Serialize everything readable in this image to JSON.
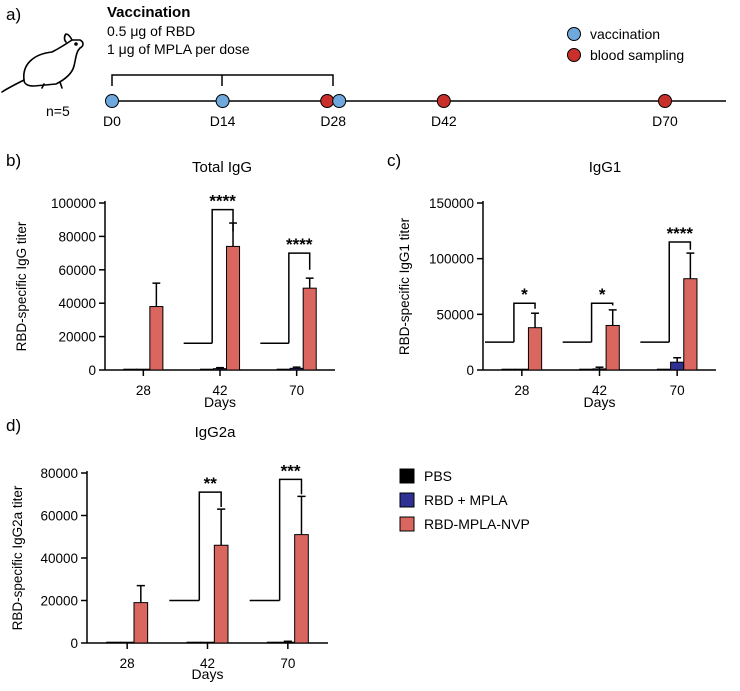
{
  "colors": {
    "pbs": "#000000",
    "rbd_mpla": "#2e3192",
    "nvp": "#d9675f",
    "vaccination": "#6fa8dc",
    "blood_sampling": "#c9302c"
  },
  "schedule": {
    "panel_label": "a)",
    "heading": "Vaccination",
    "line1": "0.5 μg of RBD",
    "line2": "1 μg of MPLA per dose",
    "n_label": "n=5",
    "legend_vaccination": "vaccination",
    "legend_blood": "blood sampling",
    "days": [
      {
        "label": "D0",
        "day": 0
      },
      {
        "label": "D14",
        "day": 14
      },
      {
        "label": "D28",
        "day": 28
      },
      {
        "label": "D42",
        "day": 42
      },
      {
        "label": "D70",
        "day": 70
      }
    ],
    "vaccination_days": [
      0,
      14,
      28
    ],
    "sampling_days": [
      28,
      42,
      70
    ]
  },
  "legend": {
    "items": [
      {
        "key": "pbs",
        "label": "PBS"
      },
      {
        "key": "rbd_mpla",
        "label": "RBD + MPLA"
      },
      {
        "key": "nvp",
        "label": "RBD-MPLA-NVP"
      }
    ]
  },
  "chart_data": [
    {
      "panel": "b)",
      "type": "bar",
      "title": "Total IgG",
      "xlabel": "Days",
      "ylabel": "RBD-specific IgG titer",
      "categories": [
        "28",
        "42",
        "70"
      ],
      "ylim": [
        0,
        100000
      ],
      "yticks": [
        0,
        20000,
        40000,
        60000,
        80000,
        100000
      ],
      "yticklabels": [
        "0",
        "20000",
        "40000",
        "60000",
        "80000",
        "100000"
      ],
      "series": [
        {
          "name": "PBS",
          "key": "pbs",
          "values": [
            0,
            0,
            0
          ],
          "errors": [
            0,
            0,
            0
          ]
        },
        {
          "name": "RBD + MPLA",
          "key": "rbd_mpla",
          "values": [
            0,
            800,
            1000
          ],
          "errors": [
            0,
            600,
            700
          ]
        },
        {
          "name": "RBD-MPLA-NVP",
          "key": "nvp",
          "values": [
            38000,
            74000,
            49000
          ],
          "errors": [
            14000,
            14000,
            6000
          ]
        }
      ],
      "significance": [
        {
          "category_index": 1,
          "label": "****",
          "base": 16000,
          "top": 96000,
          "right": 83000
        },
        {
          "category_index": 2,
          "label": "****",
          "base": 16000,
          "top": 70000,
          "right": 60000
        }
      ]
    },
    {
      "panel": "c)",
      "type": "bar",
      "title": "IgG1",
      "xlabel": "Days",
      "ylabel": "RBD-specific IgG1 titer",
      "categories": [
        "28",
        "42",
        "70"
      ],
      "ylim": [
        0,
        150000
      ],
      "yticks": [
        0,
        50000,
        100000,
        150000
      ],
      "yticklabels": [
        "0",
        "50000",
        "100000",
        "150000"
      ],
      "series": [
        {
          "name": "PBS",
          "key": "pbs",
          "values": [
            0,
            0,
            0
          ],
          "errors": [
            0,
            0,
            0
          ]
        },
        {
          "name": "RBD + MPLA",
          "key": "rbd_mpla",
          "values": [
            0,
            1000,
            7000
          ],
          "errors": [
            0,
            1500,
            4000
          ]
        },
        {
          "name": "RBD-MPLA-NVP",
          "key": "nvp",
          "values": [
            38000,
            40000,
            82000
          ],
          "errors": [
            13000,
            14000,
            23000
          ]
        }
      ],
      "significance": [
        {
          "category_index": 0,
          "label": "*",
          "base": 25000,
          "top": 60000,
          "right": 55000
        },
        {
          "category_index": 1,
          "label": "*",
          "base": 25000,
          "top": 60000,
          "right": 58000
        },
        {
          "category_index": 2,
          "label": "****",
          "base": 25000,
          "top": 115000,
          "right": 108000
        }
      ]
    },
    {
      "panel": "d)",
      "type": "bar",
      "title": "IgG2a",
      "xlabel": "Days",
      "ylabel": "RBD-specific IgG2a titer",
      "categories": [
        "28",
        "42",
        "70"
      ],
      "ylim": [
        0,
        80000
      ],
      "yticks": [
        0,
        20000,
        40000,
        60000,
        80000
      ],
      "yticklabels": [
        "0",
        "20000",
        "40000",
        "60000",
        "80000"
      ],
      "series": [
        {
          "name": "PBS",
          "key": "pbs",
          "values": [
            0,
            0,
            0
          ],
          "errors": [
            0,
            0,
            0
          ]
        },
        {
          "name": "RBD + MPLA",
          "key": "rbd_mpla",
          "values": [
            0,
            0,
            300
          ],
          "errors": [
            0,
            0,
            500
          ]
        },
        {
          "name": "RBD-MPLA-NVP",
          "key": "nvp",
          "values": [
            19000,
            46000,
            51000
          ],
          "errors": [
            8000,
            17000,
            18000
          ]
        }
      ],
      "significance": [
        {
          "category_index": 1,
          "label": "**",
          "base": 20000,
          "top": 71000,
          "right": 64000
        },
        {
          "category_index": 2,
          "label": "***",
          "base": 20000,
          "top": 77000,
          "right": 70000
        }
      ]
    }
  ]
}
